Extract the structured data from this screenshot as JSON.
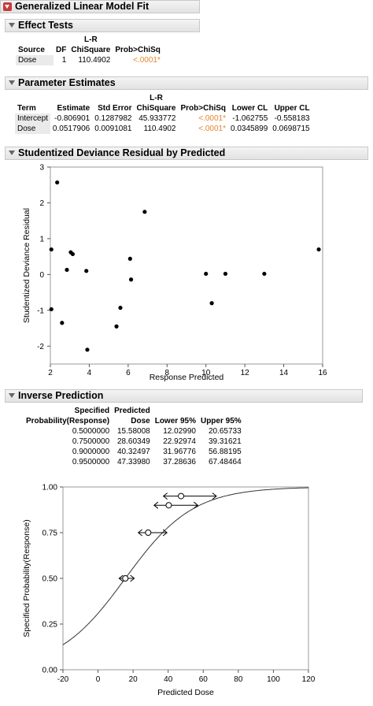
{
  "title": "Generalized Linear Model Fit",
  "effect_tests": {
    "title": "Effect Tests",
    "header_top": "L-R",
    "columns": [
      "Source",
      "DF",
      "ChiSquare",
      "Prob>ChiSq"
    ],
    "rows": [
      [
        "Dose",
        "1",
        "110.4902",
        "<.0001*"
      ]
    ]
  },
  "parameter_estimates": {
    "title": "Parameter Estimates",
    "header_top": "L-R",
    "columns": [
      "Term",
      "Estimate",
      "Std Error",
      "ChiSquare",
      "Prob>ChiSq",
      "Lower CL",
      "Upper CL"
    ],
    "rows": [
      [
        "Intercept",
        "-0.806901",
        "0.1287982",
        "45.933772",
        "<.0001*",
        "-1.062755",
        "-0.558183"
      ],
      [
        "Dose",
        "0.0517906",
        "0.0091081",
        "110.4902",
        "<.0001*",
        "0.0345899",
        "0.0698715"
      ]
    ]
  },
  "residual_plot": {
    "title": "Studentized Deviance Residual by Predicted",
    "xlabel": "Response Predicted",
    "ylabel": "Studentized Deviance Residual",
    "xlim": [
      2,
      16
    ],
    "ylim": [
      -2.5,
      3
    ],
    "xticks": [
      "2",
      "4",
      "6",
      "8",
      "10",
      "12",
      "14",
      "16"
    ],
    "yticks": [
      "3",
      "2",
      "1",
      "0",
      "-1",
      "-2"
    ]
  },
  "inverse_prediction": {
    "title": "Inverse Prediction",
    "columns": [
      [
        "Specified",
        "Probability(Response)"
      ],
      [
        "Predicted",
        "Dose"
      ],
      [
        "",
        "Lower 95%"
      ],
      [
        "",
        "Upper 95%"
      ]
    ],
    "rows": [
      [
        "0.5000000",
        "15.58008",
        "12.02990",
        "20.65733"
      ],
      [
        "0.7500000",
        "28.60349",
        "22.92974",
        "39.31621"
      ],
      [
        "0.9000000",
        "40.32497",
        "31.96776",
        "56.88195"
      ],
      [
        "0.9500000",
        "47.33980",
        "37.28636",
        "67.48464"
      ]
    ]
  },
  "inverse_plot": {
    "xlabel": "Predicted Dose",
    "ylabel": "Specified Probability(Response)",
    "xlim": [
      -20,
      120
    ],
    "ylim": [
      0,
      1
    ],
    "xticks": [
      "-20",
      "0",
      "20",
      "40",
      "60",
      "80",
      "100",
      "120"
    ],
    "yticks": [
      "1.00",
      "0.75",
      "0.50",
      "0.25",
      "0.00"
    ]
  },
  "chart_data": [
    {
      "type": "scatter",
      "title": "Studentized Deviance Residual by Predicted",
      "xlabel": "Response Predicted",
      "ylabel": "Studentized Deviance Residual",
      "xlim": [
        2,
        16
      ],
      "ylim": [
        -2.5,
        3
      ],
      "grid": false,
      "points": [
        {
          "x": 2.05,
          "y": 0.7
        },
        {
          "x": 2.05,
          "y": -0.97
        },
        {
          "x": 2.35,
          "y": 2.57
        },
        {
          "x": 2.6,
          "y": -1.35
        },
        {
          "x": 2.85,
          "y": 0.13
        },
        {
          "x": 3.05,
          "y": 0.62
        },
        {
          "x": 3.15,
          "y": 0.57
        },
        {
          "x": 3.85,
          "y": 0.1
        },
        {
          "x": 3.9,
          "y": -2.1
        },
        {
          "x": 5.4,
          "y": -1.45
        },
        {
          "x": 5.6,
          "y": -0.93
        },
        {
          "x": 6.1,
          "y": 0.44
        },
        {
          "x": 6.15,
          "y": -0.14
        },
        {
          "x": 6.85,
          "y": 1.75
        },
        {
          "x": 10.0,
          "y": 0.02
        },
        {
          "x": 10.3,
          "y": -0.8
        },
        {
          "x": 11.0,
          "y": 0.02
        },
        {
          "x": 13.0,
          "y": 0.02
        },
        {
          "x": 15.8,
          "y": 0.7
        }
      ]
    },
    {
      "type": "line",
      "xlabel": "Predicted Dose",
      "ylabel": "Specified Probability(Response)",
      "xlim": [
        -20,
        120
      ],
      "ylim": [
        0,
        1
      ],
      "grid": false,
      "curve": {
        "intercept": -0.806901,
        "slope": 0.0517906
      },
      "points": [
        {
          "x": 15.58008,
          "y": 0.5,
          "lower": 12.0299,
          "upper": 20.65733
        },
        {
          "x": 28.60349,
          "y": 0.75,
          "lower": 22.92974,
          "upper": 39.31621
        },
        {
          "x": 40.32497,
          "y": 0.9,
          "lower": 31.96776,
          "upper": 56.88195
        },
        {
          "x": 47.3398,
          "y": 0.95,
          "lower": 37.28636,
          "upper": 67.48464
        }
      ]
    }
  ]
}
